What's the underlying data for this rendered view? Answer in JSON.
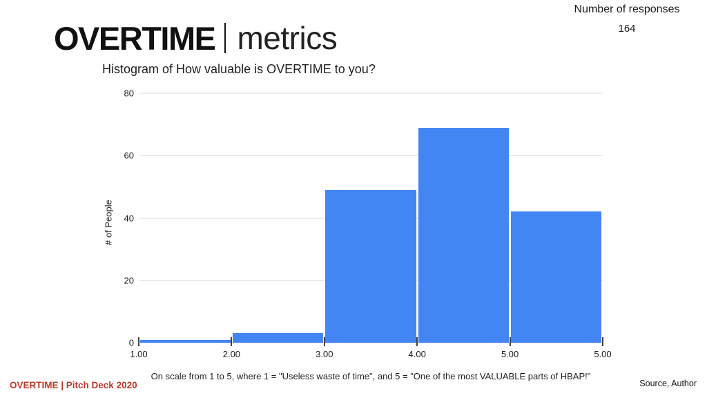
{
  "header": {
    "title_primary": "OVERTIME",
    "title_secondary": "metrics",
    "responses_label": "Number of responses",
    "responses_count": "164"
  },
  "footer": {
    "deck_label": "OVERTIME |  Pitch Deck 2020",
    "source_label": "Source, Author"
  },
  "chart_data": {
    "type": "bar",
    "title": "Histogram of How valuable is OVERTIME to you?",
    "xlabel": "On scale from 1 to 5, where 1 = \"Useless waste of time\", and 5 = \"One of the most VALUABLE parts of HBAP!\"",
    "ylabel": "# of People",
    "categories": [
      "1.00-2.00",
      "2.00-3.00",
      "3.00-4.00",
      "4.00-5.00",
      "5.00-5.00"
    ],
    "values": [
      1,
      3,
      49,
      69,
      42
    ],
    "x_tick_labels": [
      "1.00",
      "2.00",
      "3.00",
      "4.00",
      "5.00",
      "5.00"
    ],
    "y_ticks": [
      0,
      20,
      40,
      60,
      80
    ],
    "ylim": [
      0,
      80
    ],
    "grid": true,
    "legend": "none",
    "bar_color": "#4485f4",
    "gridline_color": "#dadada",
    "tick_color": "#424242"
  }
}
